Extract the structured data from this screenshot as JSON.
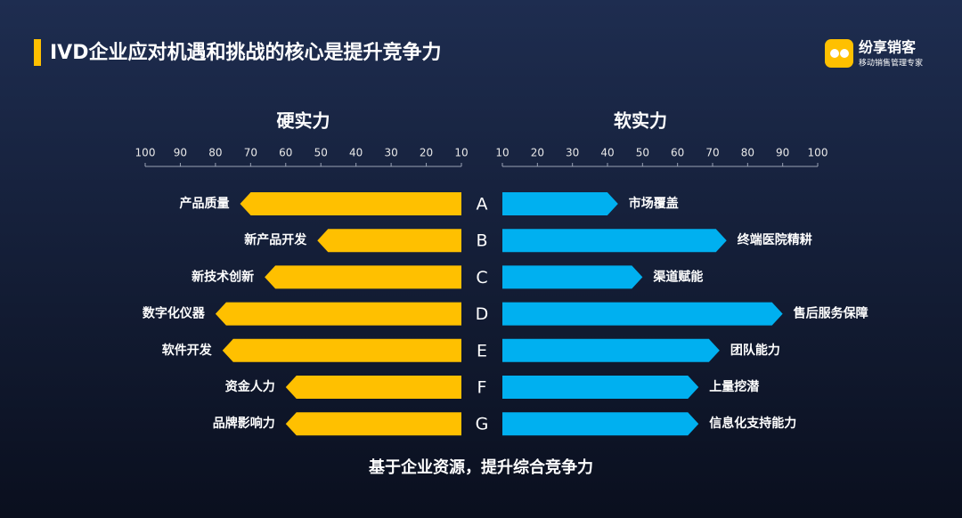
{
  "header": {
    "title": "IVD企业应对机遇和挑战的核心是提升竞争力",
    "brand_name": "纷享销客",
    "brand_slogan": "移动销售管理专家"
  },
  "row_letters": [
    "A",
    "B",
    "C",
    "D",
    "E",
    "F",
    "G"
  ],
  "footer": "基于企业资源，提升综合竞争力",
  "chart_data": [
    {
      "type": "bar",
      "orientation": "horizontal",
      "title": "硬实力",
      "color": "#ffc000",
      "categories": [
        "产品质量",
        "新产品开发",
        "新技术创新",
        "数字化仪器",
        "软件开发",
        "资金人力",
        "品牌影响力"
      ],
      "values": [
        73,
        51,
        66,
        80,
        78,
        60,
        60
      ],
      "xlim": [
        100,
        10
      ],
      "xticks": [
        100,
        90,
        80,
        70,
        60,
        50,
        40,
        30,
        20,
        10
      ]
    },
    {
      "type": "bar",
      "orientation": "horizontal",
      "title": "软实力",
      "color": "#00b0f0",
      "categories": [
        "市场覆盖",
        "终端医院精耕",
        "渠道赋能",
        "售后服务保障",
        "团队能力",
        "上量挖潜",
        "信息化支持能力"
      ],
      "values": [
        43,
        74,
        50,
        90,
        72,
        66,
        66
      ],
      "xlim": [
        10,
        100
      ],
      "xticks": [
        10,
        20,
        30,
        40,
        50,
        60,
        70,
        80,
        90,
        100
      ]
    }
  ]
}
